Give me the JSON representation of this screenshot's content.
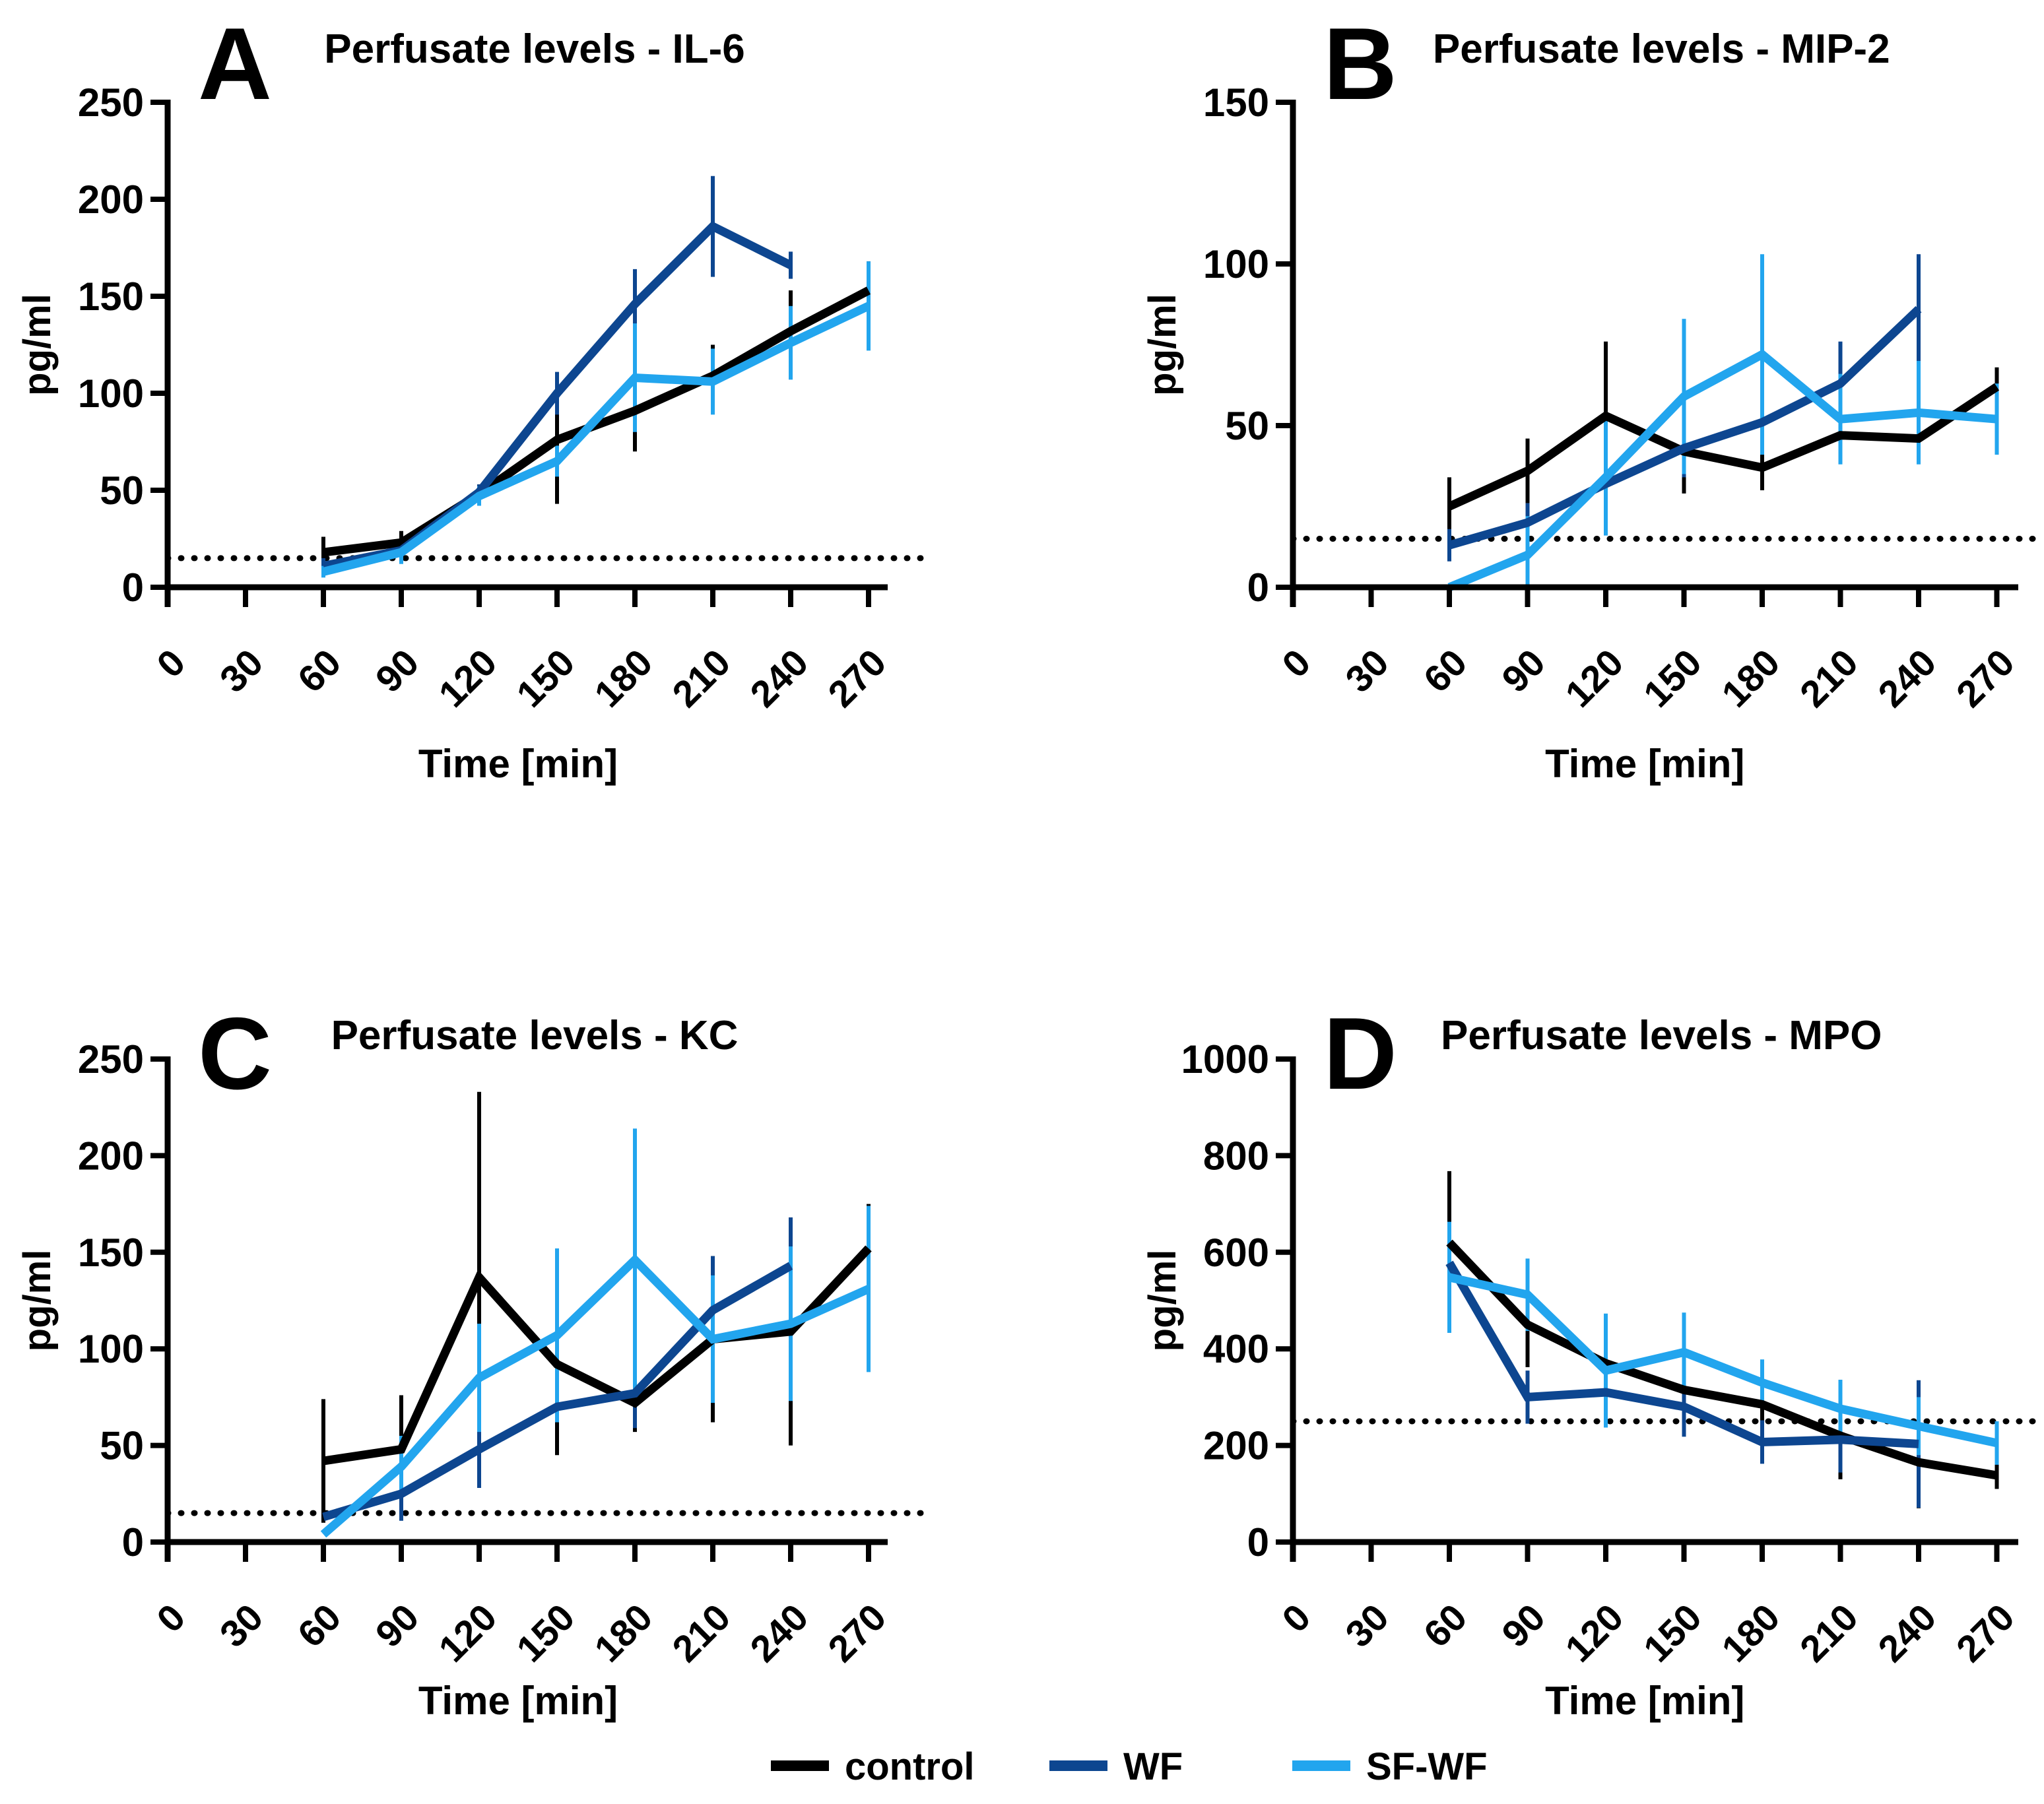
{
  "figure": {
    "background": "#ffffff",
    "axis_color": "#000000"
  },
  "legend": {
    "position": "bottom-center",
    "items": [
      {
        "label": "control",
        "color": "#000000"
      },
      {
        "label": "WF",
        "color": "#0d4690"
      },
      {
        "label": "SF-WF",
        "color": "#22a5ee"
      }
    ]
  },
  "chart_data": [
    {
      "type": "line",
      "panel_letter": "A",
      "title": "Perfusate levels - IL-6",
      "xlabel": "Time [min]",
      "ylabel": "pg/ml",
      "xlim": [
        0,
        285
      ],
      "ylim": [
        0,
        250
      ],
      "xticks": [
        0,
        30,
        60,
        90,
        120,
        150,
        180,
        210,
        240,
        270
      ],
      "yticks": [
        0,
        50,
        100,
        150,
        200,
        250
      ],
      "grid": false,
      "detection_limit": 15,
      "series": [
        {
          "name": "control",
          "color": "#000000",
          "x": [
            60,
            90,
            120,
            150,
            180,
            210,
            240,
            270
          ],
          "y": [
            18,
            23,
            48,
            76,
            91,
            109,
            132,
            153
          ],
          "err": [
            8,
            6,
            5,
            33,
            21,
            16,
            21,
            15
          ]
        },
        {
          "name": "WF",
          "color": "#0d4690",
          "x": [
            60,
            90,
            120,
            150,
            180,
            210,
            240
          ],
          "y": [
            11,
            19,
            49,
            100,
            146,
            186,
            166
          ],
          "err": [
            4,
            4,
            4,
            11,
            18,
            26,
            7
          ]
        },
        {
          "name": "SF-WF",
          "color": "#22a5ee",
          "x": [
            60,
            90,
            120,
            150,
            180,
            210,
            240,
            270
          ],
          "y": [
            8,
            18,
            47,
            65,
            108,
            106,
            126,
            145
          ],
          "err": [
            3,
            6,
            5,
            8,
            28,
            17,
            19,
            23
          ]
        }
      ]
    },
    {
      "type": "line",
      "panel_letter": "B",
      "title": "Perfusate levels - MIP-2",
      "xlabel": "Time [min]",
      "ylabel": "pg/ml",
      "xlim": [
        0,
        285
      ],
      "ylim": [
        0,
        150
      ],
      "xticks": [
        0,
        30,
        60,
        90,
        120,
        150,
        180,
        210,
        240,
        270
      ],
      "yticks": [
        0,
        50,
        100,
        150
      ],
      "grid": false,
      "detection_limit": 15,
      "series": [
        {
          "name": "control",
          "color": "#000000",
          "x": [
            60,
            90,
            120,
            150,
            180,
            210,
            240,
            270
          ],
          "y": [
            25,
            36,
            53,
            42,
            37,
            47,
            46,
            62
          ],
          "err": [
            9,
            10,
            23,
            13,
            7,
            0,
            2,
            6
          ]
        },
        {
          "name": "WF",
          "color": "#0d4690",
          "x": [
            60,
            90,
            120,
            150,
            180,
            210,
            240
          ],
          "y": [
            13,
            20,
            32,
            43,
            51,
            63,
            86
          ],
          "err": [
            5,
            6,
            0,
            9,
            0,
            13,
            17
          ]
        },
        {
          "name": "SF-WF",
          "color": "#22a5ee",
          "x": [
            60,
            90,
            120,
            150,
            180,
            210,
            240,
            270
          ],
          "y": [
            0,
            10,
            34,
            59,
            72,
            52,
            54,
            52
          ],
          "err": [
            0,
            12,
            18,
            24,
            31,
            14,
            16,
            11
          ]
        }
      ]
    },
    {
      "type": "line",
      "panel_letter": "C",
      "title": "Perfusate levels - KC",
      "xlabel": "Time [min]",
      "ylabel": "pg/ml",
      "xlim": [
        0,
        285
      ],
      "ylim": [
        0,
        250
      ],
      "xticks": [
        0,
        30,
        60,
        90,
        120,
        150,
        180,
        210,
        240,
        270
      ],
      "yticks": [
        0,
        50,
        100,
        150,
        200,
        250
      ],
      "grid": false,
      "detection_limit": 15,
      "series": [
        {
          "name": "control",
          "color": "#000000",
          "x": [
            60,
            90,
            120,
            150,
            180,
            210,
            240,
            270
          ],
          "y": [
            42,
            48,
            137,
            92,
            72,
            105,
            109,
            152
          ],
          "err": [
            32,
            28,
            96,
            47,
            15,
            43,
            59,
            23
          ]
        },
        {
          "name": "WF",
          "color": "#0d4690",
          "x": [
            60,
            90,
            120,
            150,
            180,
            210,
            240
          ],
          "y": [
            13,
            25,
            48,
            70,
            77,
            120,
            143
          ],
          "err": [
            0,
            14,
            20,
            0,
            18,
            28,
            25
          ]
        },
        {
          "name": "SF-WF",
          "color": "#22a5ee",
          "x": [
            60,
            90,
            120,
            150,
            180,
            210,
            240,
            270
          ],
          "y": [
            4,
            39,
            85,
            107,
            146,
            105,
            113,
            131
          ],
          "err": [
            0,
            16,
            28,
            45,
            68,
            33,
            40,
            43
          ]
        }
      ]
    },
    {
      "type": "line",
      "panel_letter": "D",
      "title": "Perfusate levels - MPO",
      "xlabel": "Time [min]",
      "ylabel": "pg/ml",
      "xlim": [
        0,
        285
      ],
      "ylim": [
        0,
        1000
      ],
      "xticks": [
        0,
        30,
        60,
        90,
        120,
        150,
        180,
        210,
        240,
        270
      ],
      "yticks": [
        0,
        200,
        400,
        600,
        800,
        1000
      ],
      "grid": false,
      "detection_limit": 250,
      "series": [
        {
          "name": "control",
          "color": "#000000",
          "x": [
            60,
            90,
            120,
            150,
            180,
            210,
            240,
            270
          ],
          "y": [
            620,
            450,
            370,
            315,
            285,
            220,
            165,
            138
          ],
          "err": [
            148,
            88,
            95,
            93,
            55,
            90,
            95,
            28
          ]
        },
        {
          "name": "WF",
          "color": "#0d4690",
          "x": [
            60,
            90,
            120,
            150,
            180,
            210,
            240
          ],
          "y": [
            578,
            300,
            310,
            280,
            207,
            212,
            203
          ],
          "err": [
            0,
            55,
            0,
            62,
            45,
            68,
            132
          ]
        },
        {
          "name": "SF-WF",
          "color": "#22a5ee",
          "x": [
            60,
            90,
            120,
            150,
            180,
            210,
            240,
            270
          ],
          "y": [
            548,
            512,
            355,
            393,
            330,
            276,
            240,
            205
          ],
          "err": [
            115,
            75,
            118,
            82,
            48,
            60,
            60,
            45
          ]
        }
      ]
    }
  ]
}
